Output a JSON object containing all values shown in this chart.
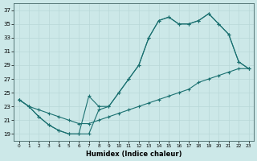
{
  "bg_color": "#cce8e8",
  "grid_color": "#b8d8d8",
  "line_color": "#1a7070",
  "xlabel": "Humidex (Indice chaleur)",
  "xlim": [
    -0.5,
    23.5
  ],
  "ylim": [
    18,
    38
  ],
  "xticks": [
    0,
    1,
    2,
    3,
    4,
    5,
    6,
    7,
    8,
    9,
    10,
    11,
    12,
    13,
    14,
    15,
    16,
    17,
    18,
    19,
    20,
    21,
    22,
    23
  ],
  "yticks": [
    19,
    21,
    23,
    25,
    27,
    29,
    31,
    33,
    35,
    37
  ],
  "curve1_x": [
    0,
    1,
    2,
    3,
    4,
    5,
    6,
    7,
    8,
    9,
    10,
    11,
    12,
    13,
    14,
    15,
    16,
    17,
    18,
    19,
    20,
    21,
    22,
    23
  ],
  "curve1_y": [
    24.0,
    23.0,
    21.5,
    20.3,
    19.5,
    19.0,
    19.0,
    19.0,
    22.5,
    23.0,
    25.0,
    27.0,
    29.0,
    33.0,
    35.5,
    36.0,
    35.0,
    35.0,
    35.5,
    36.5,
    35.0,
    33.5,
    29.5,
    28.5
  ],
  "curve2_x": [
    0,
    1,
    2,
    3,
    4,
    5,
    6,
    7,
    8,
    9,
    10,
    11,
    12,
    13,
    14,
    15,
    16,
    17,
    18,
    19,
    20,
    21,
    22,
    23
  ],
  "curve2_y": [
    24.0,
    23.0,
    21.5,
    20.3,
    19.5,
    19.0,
    19.0,
    24.5,
    23.0,
    23.0,
    25.0,
    27.0,
    29.0,
    33.0,
    35.5,
    36.0,
    35.0,
    35.0,
    35.5,
    36.5,
    35.0,
    33.5,
    29.5,
    28.5
  ],
  "curve3_x": [
    0,
    1,
    2,
    3,
    4,
    5,
    6,
    7,
    8,
    9,
    10,
    11,
    12,
    13,
    14,
    15,
    16,
    17,
    18,
    19,
    20,
    21,
    22,
    23
  ],
  "curve3_y": [
    24.0,
    23.0,
    22.5,
    22.0,
    21.5,
    21.0,
    20.5,
    20.5,
    21.0,
    21.5,
    22.0,
    22.5,
    23.0,
    23.5,
    24.0,
    24.5,
    25.0,
    25.5,
    26.5,
    27.0,
    27.5,
    28.0,
    28.5,
    28.5
  ]
}
